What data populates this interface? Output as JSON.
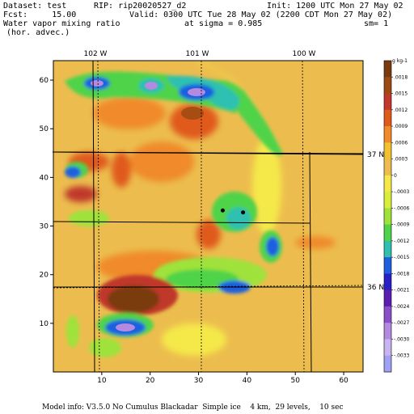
{
  "header": {
    "dataset": "Dataset: test",
    "rip": "RIP: rip20020527_d2",
    "init": "Init: 1200 UTC Mon 27 May 02",
    "fcst": "Fcst:     15.00",
    "valid": "Valid: 0300 UTC Tue 28 May 02 (2200 CDT Mon 27 May 02)",
    "field_line1": "Water vapor mixing ratio",
    "field_line2": "(hor. advec.)",
    "sigma": "at sigma = 0.985",
    "sm": "sm= 1"
  },
  "map": {
    "x_ticks": [
      10,
      20,
      30,
      40,
      50,
      60
    ],
    "y_ticks": [
      10,
      20,
      30,
      40,
      50,
      60
    ],
    "x_range": [
      0,
      64
    ],
    "y_range": [
      0,
      64
    ],
    "lon_labels": [
      "102 W",
      "101 W",
      "100 W"
    ],
    "lat_labels": [
      "37 N",
      "36 N"
    ],
    "points": [
      [
        35,
        33.2
      ],
      [
        39.2,
        32.8
      ]
    ]
  },
  "colorbar": {
    "unit": "g kg-1",
    "labels": [
      ".0018",
      ".0015",
      ".0012",
      ".0009",
      ".0006",
      ".0003",
      "0",
      "-.0003",
      "-.0006",
      "-.0009",
      "-.0012",
      "-.0015",
      "-.0018",
      "-.0021",
      "-.0024",
      "-.0027",
      "-.0030",
      "-.0033"
    ],
    "colors": [
      "#7a3a10",
      "#9c4b12",
      "#c0392b",
      "#e05a1a",
      "#f08a2a",
      "#f3c02e",
      "#ecbd4e",
      "#f5e94a",
      "#d8ef3a",
      "#9fe23a",
      "#4fd34a",
      "#2ec0b0",
      "#1e5fe0",
      "#2a1ec8",
      "#5a1fb0",
      "#8a4fc8",
      "#b38ae0",
      "#c8b4f0",
      "#a0a0f5"
    ]
  },
  "footer": "Model info: V3.5.0 No Cumulus Blackadar  Simple ice    4 km,  29 levels,    10 sec"
}
